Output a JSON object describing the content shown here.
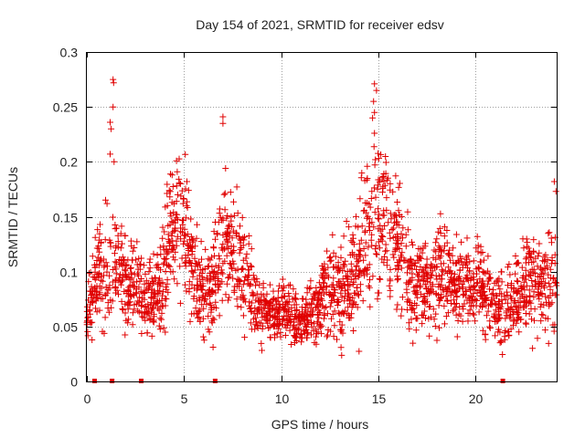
{
  "chart_data": {
    "type": "scatter",
    "title": "Day 154 of 2021, SRMTID for receiver edsv",
    "xlabel": "GPS time / hours",
    "ylabel": "SRMTID / TECUs",
    "xlim": [
      0,
      24.17
    ],
    "ylim": [
      0,
      0.3
    ],
    "x_ticks": [
      0,
      5,
      10,
      15,
      20
    ],
    "x_tick_labels": [
      "0",
      "5",
      "10",
      "15",
      "20"
    ],
    "y_ticks": [
      0,
      0.05,
      0.1,
      0.15,
      0.2,
      0.25,
      0.3
    ],
    "y_tick_labels": [
      "0",
      "0.05",
      "0.1",
      "0.15",
      "0.2",
      "0.25",
      "0.3"
    ],
    "grid": true,
    "marker": "plus",
    "marker_color": "#e00000",
    "square_marker_x": [
      0.4,
      1.3,
      2.8,
      6.6,
      21.4
    ],
    "outlier_points": [
      {
        "x": 1.35,
        "y": 0.275
      },
      {
        "x": 1.38,
        "y": 0.272
      },
      {
        "x": 1.35,
        "y": 0.25
      },
      {
        "x": 1.2,
        "y": 0.236
      },
      {
        "x": 1.25,
        "y": 0.23
      },
      {
        "x": 1.2,
        "y": 0.207
      },
      {
        "x": 1.4,
        "y": 0.2
      },
      {
        "x": 7.0,
        "y": 0.241
      },
      {
        "x": 7.0,
        "y": 0.235
      },
      {
        "x": 14.8,
        "y": 0.271
      },
      {
        "x": 14.9,
        "y": 0.265
      },
      {
        "x": 14.75,
        "y": 0.255
      },
      {
        "x": 14.8,
        "y": 0.245
      },
      {
        "x": 14.7,
        "y": 0.24
      },
      {
        "x": 14.8,
        "y": 0.226
      }
    ],
    "series": [
      {
        "name": "SRMTID",
        "x": [
          0,
          0.5,
          1,
          1.5,
          2,
          2.5,
          3,
          3.5,
          4,
          4.5,
          5,
          5.5,
          6,
          6.5,
          7,
          7.5,
          8,
          8.5,
          9,
          9.5,
          10,
          10.5,
          11,
          11.5,
          12,
          12.5,
          13,
          13.5,
          14,
          14.5,
          15,
          15.5,
          16,
          16.5,
          17,
          17.5,
          18,
          18.5,
          19,
          19.5,
          20,
          20.5,
          21,
          21.5,
          22,
          22.5,
          23,
          23.5,
          24
        ],
        "y": [
          0.055,
          0.1,
          0.095,
          0.105,
          0.09,
          0.085,
          0.075,
          0.08,
          0.095,
          0.15,
          0.14,
          0.1,
          0.08,
          0.085,
          0.135,
          0.12,
          0.1,
          0.085,
          0.065,
          0.06,
          0.065,
          0.06,
          0.058,
          0.06,
          0.075,
          0.085,
          0.08,
          0.09,
          0.105,
          0.14,
          0.15,
          0.145,
          0.125,
          0.1,
          0.085,
          0.085,
          0.1,
          0.09,
          0.085,
          0.085,
          0.09,
          0.075,
          0.065,
          0.06,
          0.08,
          0.09,
          0.085,
          0.085,
          0.1
        ],
        "spread": [
          0.02,
          0.03,
          0.05,
          0.04,
          0.035,
          0.03,
          0.025,
          0.03,
          0.04,
          0.045,
          0.045,
          0.035,
          0.03,
          0.035,
          0.045,
          0.04,
          0.035,
          0.03,
          0.02,
          0.02,
          0.022,
          0.02,
          0.02,
          0.022,
          0.03,
          0.035,
          0.035,
          0.04,
          0.05,
          0.055,
          0.055,
          0.05,
          0.045,
          0.035,
          0.03,
          0.03,
          0.035,
          0.035,
          0.03,
          0.03,
          0.03,
          0.03,
          0.025,
          0.025,
          0.03,
          0.035,
          0.035,
          0.035,
          0.045
        ]
      }
    ]
  }
}
